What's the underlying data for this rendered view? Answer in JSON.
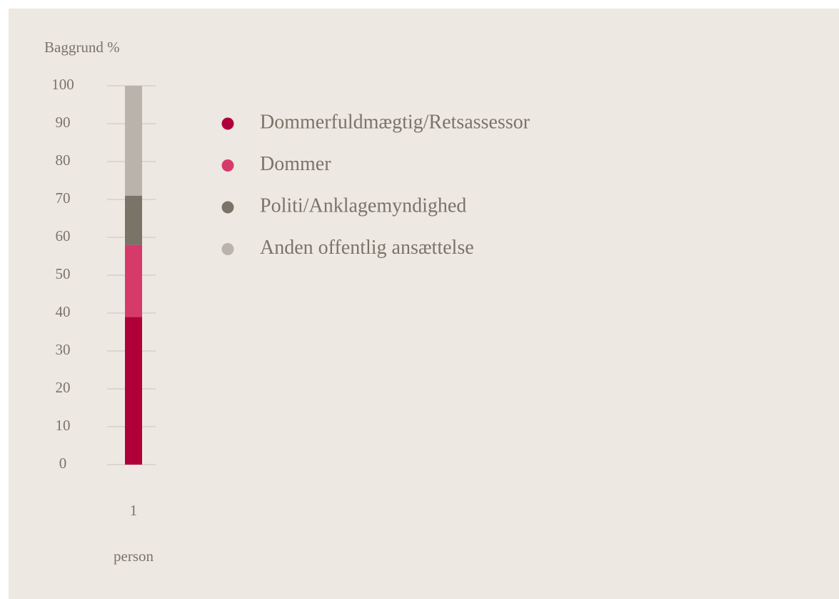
{
  "chart_data": {
    "type": "stacked_bar",
    "y_label": "Baggrund %",
    "x_label": "person",
    "categories": [
      "1"
    ],
    "series": [
      {
        "name": "Dommerfuldmægtig/Retsassessor",
        "color": "#b0003a",
        "values": [
          39
        ]
      },
      {
        "name": "Dommer",
        "color": "#d63a6a",
        "values": [
          19
        ]
      },
      {
        "name": "Politi/Anklagemyndighed",
        "color": "#7a7468",
        "values": [
          13
        ]
      },
      {
        "name": "Anden offentlig ansættelse",
        "color": "#bab3ac",
        "values": [
          29
        ]
      }
    ],
    "ylim": [
      0,
      100
    ],
    "yticks": [
      0,
      10,
      20,
      30,
      40,
      50,
      60,
      70,
      80,
      90,
      100
    ],
    "grid": true,
    "legend": "right"
  }
}
